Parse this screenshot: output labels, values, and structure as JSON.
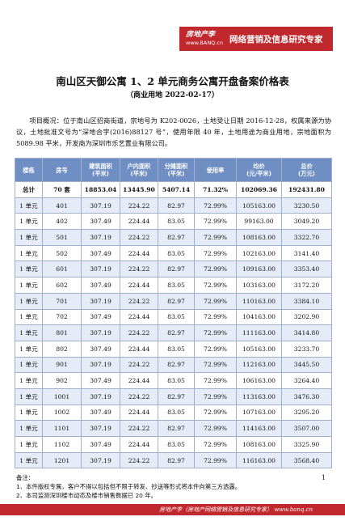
{
  "header": {
    "logo": "房地产李",
    "url": "www.BANQ.cn",
    "slogan": "网络营销及信息研究专家"
  },
  "title": "南山区天御公寓 1、2 单元商务公寓开盘备案价格表",
  "subtitle": "（商业用地   2022-02-17）",
  "intro": "项目概况：位于南山区招商街道，宗地号为 K202-0026，土地受让日期 2016-12-28，权属来源为协议，土地批准文号为“深地合字(2016)88127 号”，使用年限 40 年，土地用途为商业用地，宗地面积为 5089.98 平米，开发商为深圳市乐艺置业有限公司。",
  "table": {
    "columns": [
      "楼栋",
      "房号",
      "建筑面积\n(平米)",
      "户内面积\n(平米)",
      "分摊面积\n(平米)",
      "使用率",
      "均价\n(元/平米)",
      "总价\n(万元)"
    ],
    "rows": [
      [
        "总计",
        "70 套",
        "18853.04",
        "13445.90",
        "5407.14",
        "71.32%",
        "102069.36",
        "192431.80"
      ],
      [
        "1 单元",
        "401",
        "307.19",
        "224.22",
        "82.97",
        "72.99%",
        "105163.00",
        "3230.50"
      ],
      [
        "1 单元",
        "402",
        "307.49",
        "224.44",
        "83.05",
        "72.99%",
        "99163.00",
        "3049.20"
      ],
      [
        "1 单元",
        "501",
        "307.19",
        "224.22",
        "82.97",
        "72.99%",
        "108163.00",
        "3322.70"
      ],
      [
        "1 单元",
        "502",
        "307.49",
        "224.44",
        "83.05",
        "72.99%",
        "102163.00",
        "3141.40"
      ],
      [
        "1 单元",
        "601",
        "307.19",
        "224.22",
        "82.97",
        "72.99%",
        "109163.00",
        "3353.40"
      ],
      [
        "1 单元",
        "602",
        "307.49",
        "224.44",
        "83.05",
        "72.99%",
        "103163.00",
        "3172.20"
      ],
      [
        "1 单元",
        "701",
        "307.19",
        "224.22",
        "82.97",
        "72.99%",
        "110163.00",
        "3384.10"
      ],
      [
        "1 单元",
        "702",
        "307.49",
        "224.44",
        "83.05",
        "72.99%",
        "104163.00",
        "3202.90"
      ],
      [
        "1 单元",
        "801",
        "307.19",
        "224.22",
        "82.97",
        "72.99%",
        "111163.00",
        "3414.80"
      ],
      [
        "1 单元",
        "802",
        "307.49",
        "224.44",
        "83.05",
        "72.99%",
        "105163.00",
        "3233.70"
      ],
      [
        "1 单元",
        "901",
        "307.19",
        "224.22",
        "82.97",
        "72.99%",
        "112163.00",
        "3445.50"
      ],
      [
        "1 单元",
        "902",
        "307.49",
        "224.44",
        "83.05",
        "72.99%",
        "106163.00",
        "3264.40"
      ],
      [
        "1 单元",
        "1001",
        "307.19",
        "224.22",
        "82.97",
        "72.99%",
        "113163.00",
        "3476.30"
      ],
      [
        "1 单元",
        "1002",
        "307.49",
        "224.44",
        "83.05",
        "72.99%",
        "107163.00",
        "3295.20"
      ],
      [
        "1 单元",
        "1101",
        "307.19",
        "224.22",
        "82.97",
        "72.99%",
        "114163.00",
        "3507.00"
      ],
      [
        "1 单元",
        "1102",
        "307.49",
        "224.44",
        "83.05",
        "72.99%",
        "108163.00",
        "3325.90"
      ],
      [
        "1 单元",
        "1201",
        "307.19",
        "224.22",
        "82.97",
        "72.99%",
        "116163.00",
        "3568.40"
      ]
    ]
  },
  "notes": {
    "label": "备注：",
    "items": [
      "1、本件版权专属，客户不得以包括但不限于转发、抄送等形式将本件向第三方透露。",
      "2、本司监测深圳楼市动态及楼市销售数据已 20 年。"
    ]
  },
  "page_number": "1",
  "footer": "房地产李（房地产网络营销及信息研究专家） www.banq.cn"
}
